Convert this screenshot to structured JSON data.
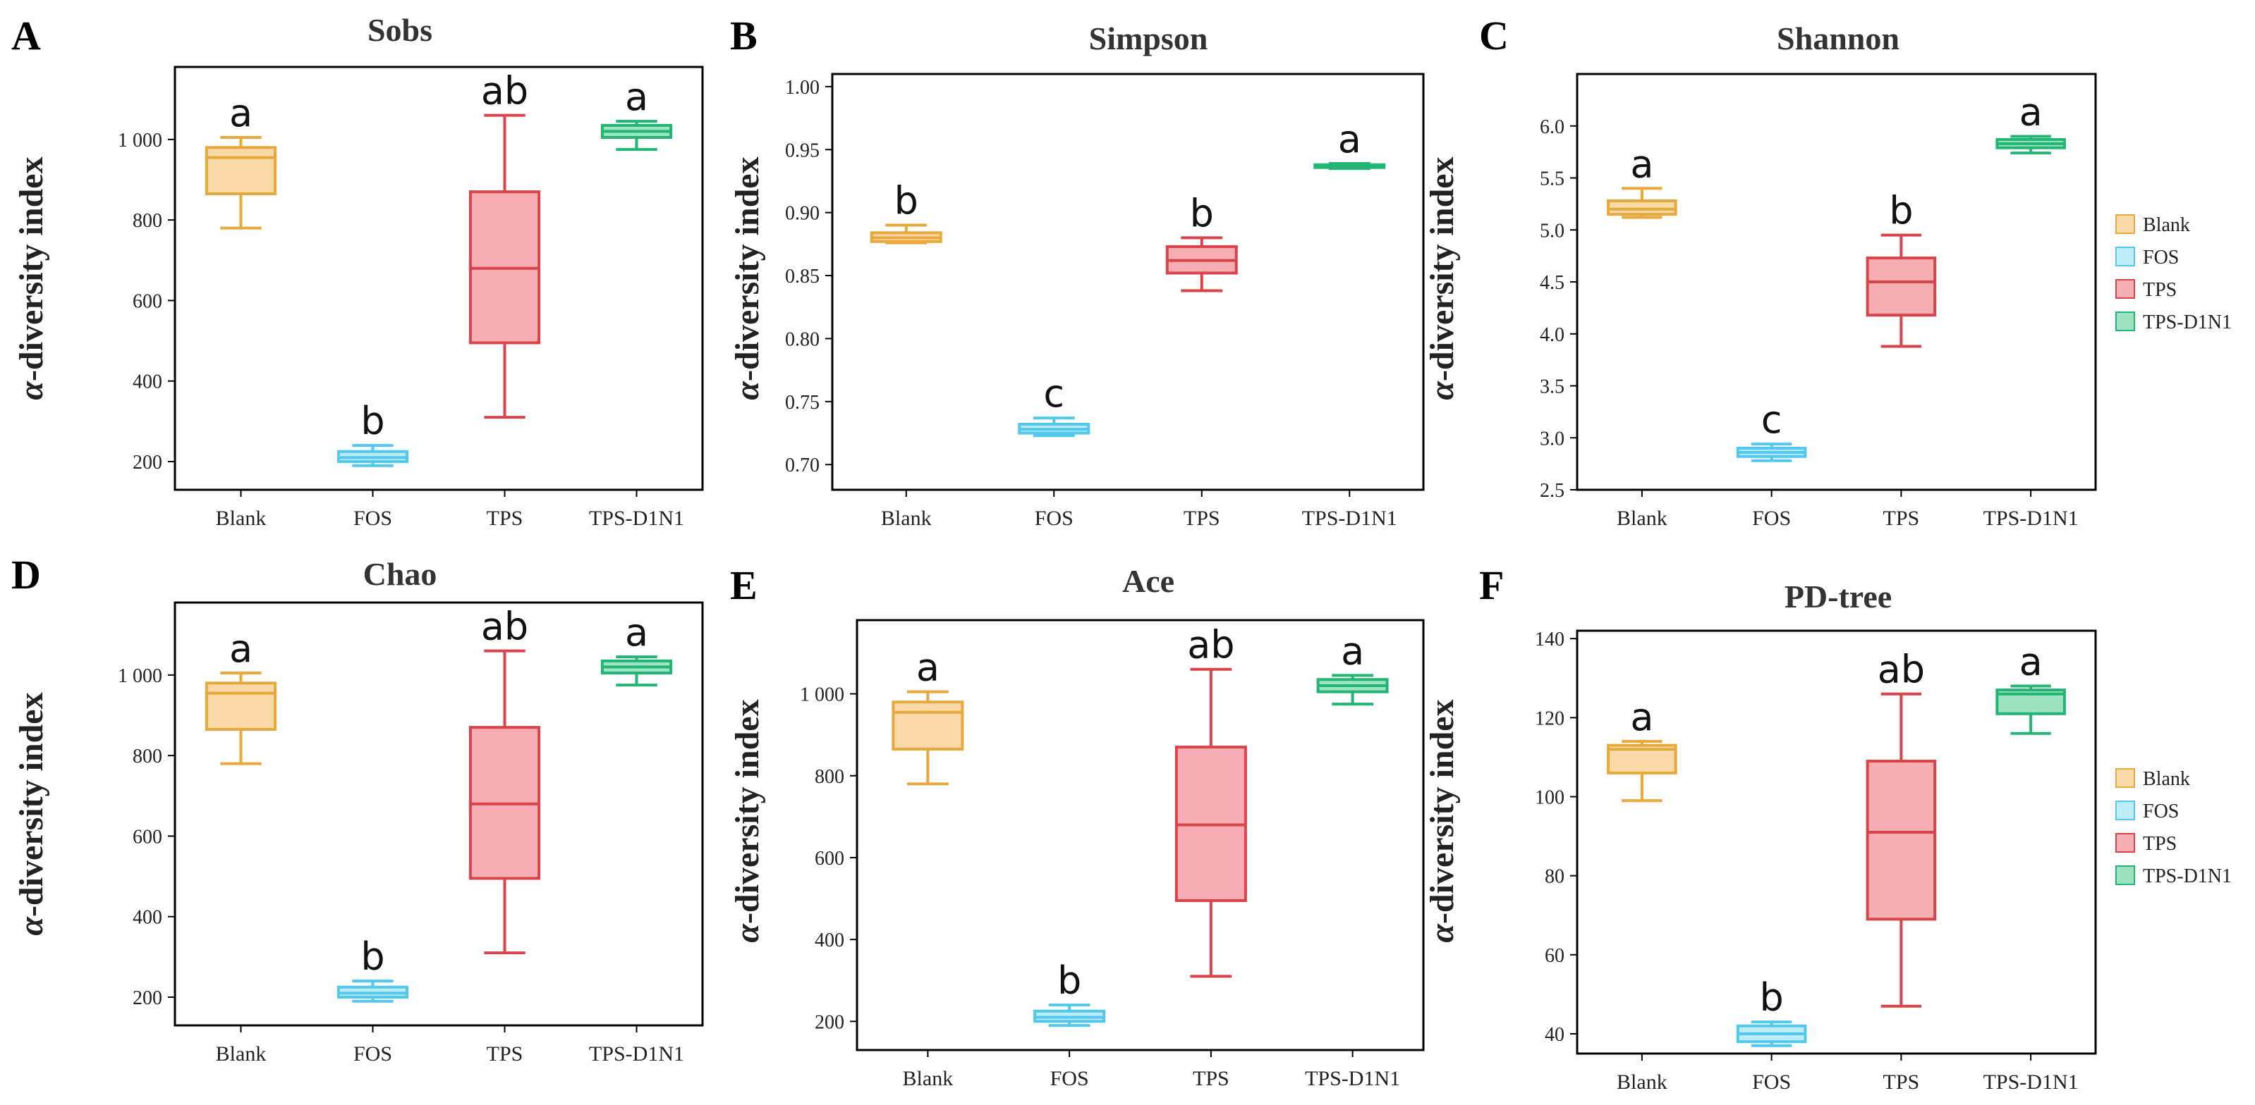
{
  "ylabel_prefix": "α",
  "ylabel_suffix": "-diversity index",
  "legend": {
    "entries": [
      {
        "name": "Blank",
        "stroke": "#E8A93C",
        "fill": "#FAD9A8"
      },
      {
        "name": "FOS",
        "stroke": "#52C8EC",
        "fill": "#BDEBF8"
      },
      {
        "name": "TPS",
        "stroke": "#D9434B",
        "fill": "#F6AEB2"
      },
      {
        "name": "TPS-D1N1",
        "stroke": "#22B573",
        "fill": "#9DE3C2"
      }
    ]
  },
  "chart_data": [
    {
      "id": "A",
      "type": "box",
      "title": "Sobs",
      "categories": [
        "Blank",
        "FOS",
        "TPS",
        "TPS-D1N1"
      ],
      "ylim": [
        130,
        1180
      ],
      "yticks": [
        200,
        400,
        600,
        800,
        1000
      ],
      "ytick_labels": [
        "200",
        "400",
        "600",
        "800",
        "1 000"
      ],
      "boxes": [
        {
          "min": 780,
          "q1": 865,
          "median": 955,
          "q3": 980,
          "max": 1005,
          "letter": "a"
        },
        {
          "min": 190,
          "q1": 200,
          "median": 210,
          "q3": 225,
          "max": 240,
          "letter": "b"
        },
        {
          "min": 310,
          "q1": 495,
          "median": 680,
          "q3": 870,
          "max": 1060,
          "letter": "ab"
        },
        {
          "min": 975,
          "q1": 1005,
          "median": 1020,
          "q3": 1035,
          "max": 1045,
          "letter": "a"
        }
      ]
    },
    {
      "id": "B",
      "type": "box",
      "title": "Simpson",
      "categories": [
        "Blank",
        "FOS",
        "TPS",
        "TPS-D1N1"
      ],
      "ylim": [
        0.68,
        1.01
      ],
      "yticks": [
        0.7,
        0.75,
        0.8,
        0.85,
        0.9,
        0.95,
        1.0
      ],
      "ytick_labels": [
        "0.70",
        "0.75",
        "0.80",
        "0.85",
        "0.90",
        "0.95",
        "1.00"
      ],
      "boxes": [
        {
          "min": 0.876,
          "q1": 0.877,
          "median": 0.88,
          "q3": 0.884,
          "max": 0.89,
          "letter": "b"
        },
        {
          "min": 0.723,
          "q1": 0.725,
          "median": 0.728,
          "q3": 0.732,
          "max": 0.737,
          "letter": "c"
        },
        {
          "min": 0.838,
          "q1": 0.852,
          "median": 0.862,
          "q3": 0.873,
          "max": 0.88,
          "letter": "b"
        },
        {
          "min": 0.935,
          "q1": 0.936,
          "median": 0.937,
          "q3": 0.938,
          "max": 0.939,
          "letter": "a"
        }
      ]
    },
    {
      "id": "C",
      "type": "box",
      "title": "Shannon",
      "categories": [
        "Blank",
        "FOS",
        "TPS",
        "TPS-D1N1"
      ],
      "ylim": [
        2.5,
        6.5
      ],
      "yticks": [
        2.5,
        3.0,
        3.5,
        4.0,
        4.5,
        5.0,
        5.5,
        6.0
      ],
      "ytick_labels": [
        "2.5",
        "3.0",
        "3.5",
        "4.0",
        "4.5",
        "5.0",
        "5.5",
        "6.0"
      ],
      "boxes": [
        {
          "min": 5.12,
          "q1": 5.15,
          "median": 5.2,
          "q3": 5.28,
          "max": 5.4,
          "letter": "a"
        },
        {
          "min": 2.78,
          "q1": 2.82,
          "median": 2.86,
          "q3": 2.9,
          "max": 2.94,
          "letter": "c"
        },
        {
          "min": 3.88,
          "q1": 4.18,
          "median": 4.5,
          "q3": 4.73,
          "max": 4.95,
          "letter": "b"
        },
        {
          "min": 5.74,
          "q1": 5.79,
          "median": 5.83,
          "q3": 5.87,
          "max": 5.9,
          "letter": "a"
        }
      ]
    },
    {
      "id": "D",
      "type": "box",
      "title": "Chao",
      "categories": [
        "Blank",
        "FOS",
        "TPS",
        "TPS-D1N1"
      ],
      "ylim": [
        130,
        1180
      ],
      "yticks": [
        200,
        400,
        600,
        800,
        1000
      ],
      "ytick_labels": [
        "200",
        "400",
        "600",
        "800",
        "1 000"
      ],
      "boxes": [
        {
          "min": 780,
          "q1": 865,
          "median": 955,
          "q3": 980,
          "max": 1005,
          "letter": "a"
        },
        {
          "min": 190,
          "q1": 200,
          "median": 210,
          "q3": 225,
          "max": 240,
          "letter": "b"
        },
        {
          "min": 310,
          "q1": 495,
          "median": 680,
          "q3": 870,
          "max": 1060,
          "letter": "ab"
        },
        {
          "min": 975,
          "q1": 1005,
          "median": 1020,
          "q3": 1035,
          "max": 1045,
          "letter": "a"
        }
      ]
    },
    {
      "id": "E",
      "type": "box",
      "title": "Ace",
      "categories": [
        "Blank",
        "FOS",
        "TPS",
        "TPS-D1N1"
      ],
      "ylim": [
        130,
        1180
      ],
      "yticks": [
        200,
        400,
        600,
        800,
        1000
      ],
      "ytick_labels": [
        "200",
        "400",
        "600",
        "800",
        "1 000"
      ],
      "boxes": [
        {
          "min": 780,
          "q1": 865,
          "median": 955,
          "q3": 980,
          "max": 1005,
          "letter": "a"
        },
        {
          "min": 190,
          "q1": 200,
          "median": 210,
          "q3": 225,
          "max": 240,
          "letter": "b"
        },
        {
          "min": 310,
          "q1": 495,
          "median": 680,
          "q3": 870,
          "max": 1060,
          "letter": "ab"
        },
        {
          "min": 975,
          "q1": 1005,
          "median": 1020,
          "q3": 1035,
          "max": 1045,
          "letter": "a"
        }
      ]
    },
    {
      "id": "F",
      "type": "box",
      "title": "PD-tree",
      "categories": [
        "Blank",
        "FOS",
        "TPS",
        "TPS-D1N1"
      ],
      "ylim": [
        35,
        142
      ],
      "yticks": [
        40,
        60,
        80,
        100,
        120,
        140
      ],
      "ytick_labels": [
        "40",
        "60",
        "80",
        "100",
        "120",
        "140"
      ],
      "boxes": [
        {
          "min": 99,
          "q1": 106,
          "median": 112,
          "q3": 113,
          "max": 114,
          "letter": "a"
        },
        {
          "min": 37,
          "q1": 38,
          "median": 40,
          "q3": 42,
          "max": 43,
          "letter": "b"
        },
        {
          "min": 47,
          "q1": 69,
          "median": 91,
          "q3": 109,
          "max": 126,
          "letter": "ab"
        },
        {
          "min": 116,
          "q1": 121,
          "median": 126,
          "q3": 127,
          "max": 128,
          "letter": "a"
        }
      ]
    }
  ]
}
